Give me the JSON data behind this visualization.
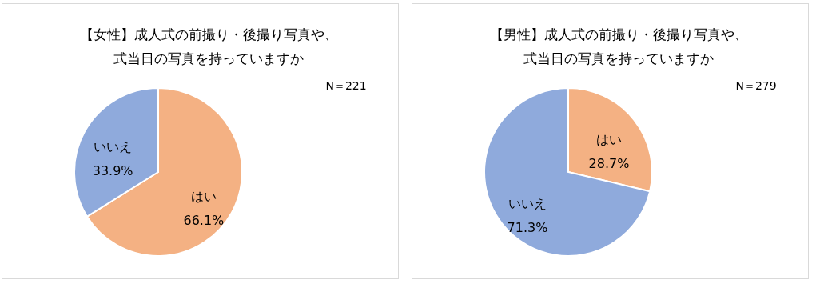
{
  "chart_data": [
    {
      "type": "pie",
      "title": "【女性】成人式の前撮り・後撮り写真や、式当日の写真を持っていますか",
      "annotations": [
        "N＝221"
      ],
      "categories": [
        "はい",
        "いいえ"
      ],
      "values": [
        66.1,
        33.9
      ],
      "value_labels": [
        "66.1%",
        "33.9%"
      ],
      "colors": [
        "#f4b183",
        "#8faadc"
      ]
    },
    {
      "type": "pie",
      "title": "【男性】成人式の前撮り・後撮り写真や、式当日の写真を持っていますか",
      "annotations": [
        "N＝279"
      ],
      "categories": [
        "はい",
        "いいえ"
      ],
      "values": [
        28.7,
        71.3
      ],
      "value_labels": [
        "28.7%",
        "71.3%"
      ],
      "colors": [
        "#f4b183",
        "#8faadc"
      ]
    }
  ]
}
